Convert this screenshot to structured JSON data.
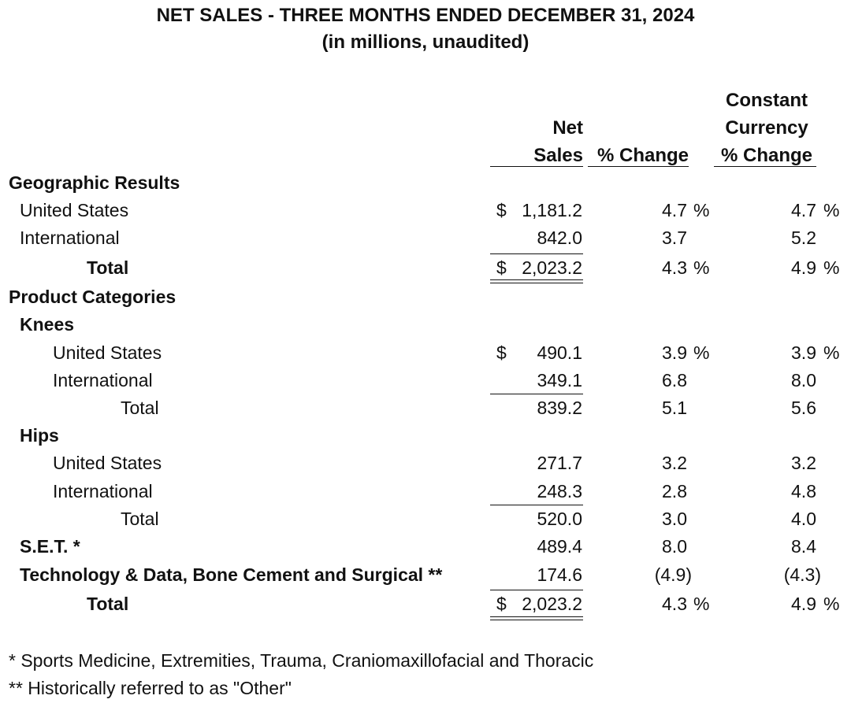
{
  "title": "NET SALES - THREE MONTHS ENDED DECEMBER 31, 2024",
  "subtitle": "(in millions, unaudited)",
  "headers": {
    "net_sales_line1": "Net",
    "net_sales_line2": "Sales",
    "pct_change": "% Change",
    "ccy_line1": "Constant",
    "ccy_line2": "Currency",
    "ccy_line3": "% Change"
  },
  "rows": [
    {
      "label": "Geographic Results"
    },
    {
      "label": "United States",
      "currency": "$",
      "amount": "1,181.2",
      "pct": "4.7",
      "pct_sign": "%",
      "ccy": "4.7",
      "ccy_sign": "%"
    },
    {
      "label": "International",
      "amount": "842.0",
      "pct": "3.7",
      "ccy": "5.2"
    },
    {
      "label": "Total",
      "currency": "$",
      "amount": "2,023.2",
      "pct": "4.3",
      "pct_sign": "%",
      "ccy": "4.9",
      "ccy_sign": "%"
    },
    {
      "label": "Product Categories"
    },
    {
      "label": "Knees"
    },
    {
      "label": "United States",
      "currency": "$",
      "amount": "490.1",
      "pct": "3.9",
      "pct_sign": "%",
      "ccy": "3.9",
      "ccy_sign": "%"
    },
    {
      "label": "International",
      "amount": "349.1",
      "pct": "6.8",
      "ccy": "8.0"
    },
    {
      "label": "Total",
      "amount": "839.2",
      "pct": "5.1",
      "ccy": "5.6"
    },
    {
      "label": "Hips"
    },
    {
      "label": "United States",
      "amount": "271.7",
      "pct": "3.2",
      "ccy": "3.2"
    },
    {
      "label": "International",
      "amount": "248.3",
      "pct": "2.8",
      "ccy": "4.8"
    },
    {
      "label": "Total",
      "amount": "520.0",
      "pct": "3.0",
      "ccy": "4.0"
    },
    {
      "label": "S.E.T. *",
      "amount": "489.4",
      "pct": "8.0",
      "ccy": "8.4"
    },
    {
      "label": "Technology & Data, Bone Cement and Surgical **",
      "amount": "174.6",
      "pct": "(4.9)",
      "ccy": "(4.3)"
    },
    {
      "label": "Total",
      "currency": "$",
      "amount": "2,023.2",
      "pct": "4.3",
      "pct_sign": "%",
      "ccy": "4.9",
      "ccy_sign": "%"
    }
  ],
  "footnotes": [
    "* Sports Medicine, Extremities, Trauma, Craniomaxillofacial and Thoracic",
    "** Historically referred to as \"Other\""
  ]
}
